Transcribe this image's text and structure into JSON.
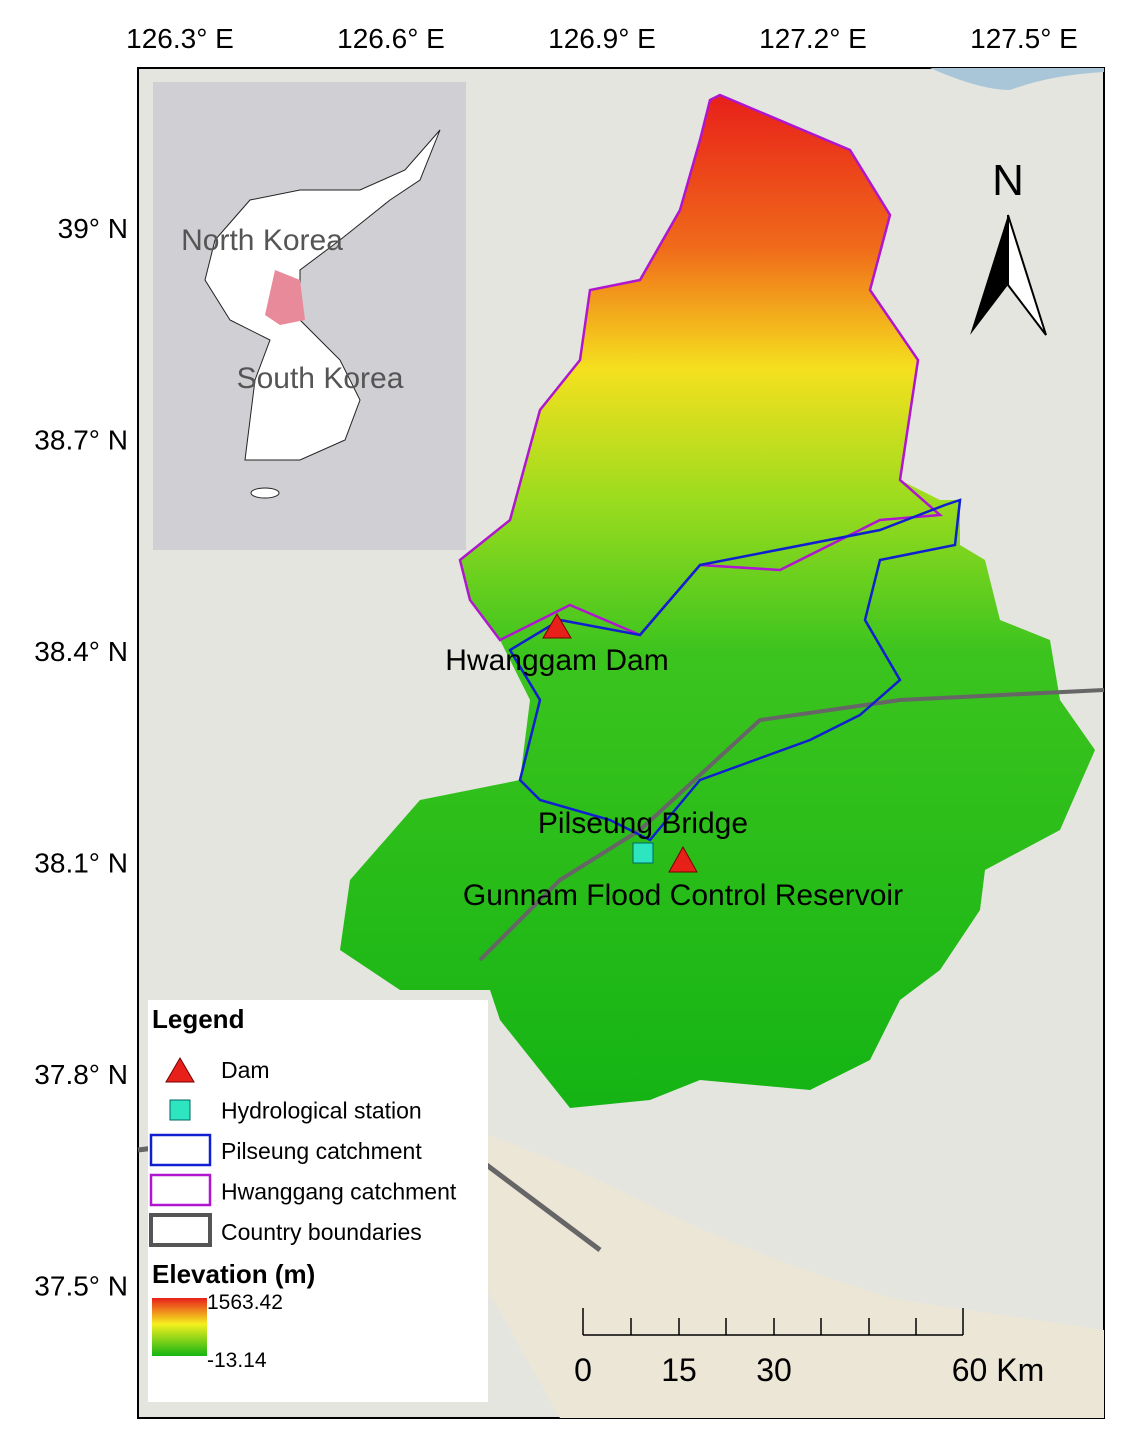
{
  "longitude_labels": [
    "126.3° E",
    "126.6° E",
    "126.9° E",
    "127.2° E",
    "127.5° E"
  ],
  "latitude_labels": [
    "39° N",
    "38.7° N",
    "38.4° N",
    "38.1° N",
    "37.8° N",
    "37.5° N"
  ],
  "inset": {
    "labels": [
      "North Korea",
      "South Korea"
    ]
  },
  "north_arrow": "N",
  "places": [
    "Hwanggam Dam",
    "Pilseung Bridge",
    "Gunnam Flood Control Reservoir"
  ],
  "legend": {
    "title": "Legend",
    "items": [
      "Dam",
      "Hydrological station",
      "Pilseung catchment",
      "Hwanggang catchment",
      "Country boundaries"
    ],
    "elevation_title": "Elevation (m)",
    "elevation_max": "1563.42",
    "elevation_min": "-13.14"
  },
  "scale_bar": [
    "0",
    "15",
    "30",
    "60 Km"
  ]
}
